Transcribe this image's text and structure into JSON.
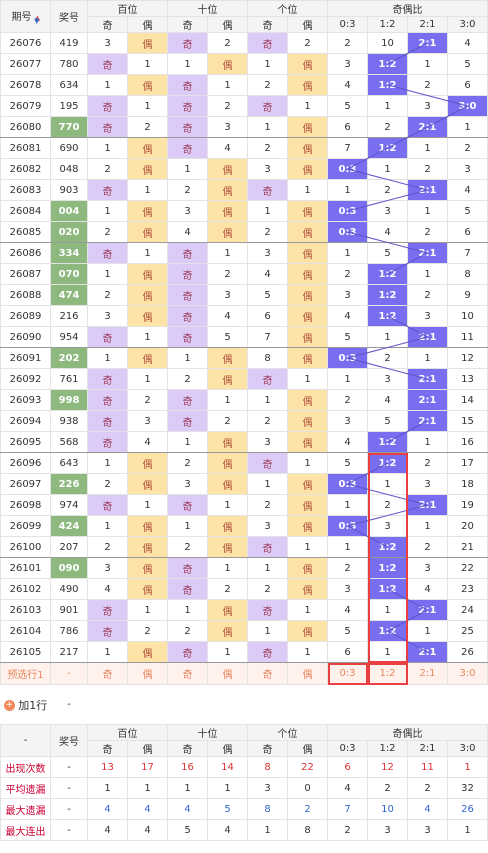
{
  "header": {
    "period": "期号",
    "number": "奖号",
    "groups": [
      "百位",
      "十位",
      "个位",
      "奇偶比"
    ],
    "sub": [
      "奇",
      "偶",
      "奇",
      "偶",
      "奇",
      "偶",
      "0:3",
      "1:2",
      "2:1",
      "3:0"
    ]
  },
  "rows": [
    [
      "26076",
      "419",
      3,
      "偶",
      "奇",
      2,
      "奇",
      2,
      2,
      10,
      "2:1",
      4
    ],
    [
      "26077",
      "780",
      "奇",
      1,
      1,
      "偶",
      1,
      "偶",
      3,
      "1:2",
      1,
      5
    ],
    [
      "26078",
      "634",
      1,
      "偶",
      "奇",
      1,
      2,
      "偶",
      4,
      "1:2",
      2,
      6
    ],
    [
      "26079",
      "195",
      "奇",
      1,
      "奇",
      2,
      "奇",
      1,
      5,
      1,
      3,
      "3:0"
    ],
    [
      "26080",
      "770",
      "奇",
      2,
      "奇",
      3,
      1,
      "偶",
      6,
      2,
      "2:1",
      1
    ],
    [
      "26081",
      "690",
      1,
      "偶",
      "奇",
      4,
      2,
      "偶",
      7,
      "1:2",
      1,
      2
    ],
    [
      "26082",
      "048",
      2,
      "偶",
      1,
      "偶",
      3,
      "偶",
      "0:3",
      1,
      2,
      3
    ],
    [
      "26083",
      "903",
      "奇",
      1,
      2,
      "偶",
      "奇",
      1,
      1,
      2,
      "2:1",
      4
    ],
    [
      "26084",
      "004",
      1,
      "偶",
      3,
      "偶",
      1,
      "偶",
      "0:3",
      3,
      1,
      5
    ],
    [
      "26085",
      "020",
      2,
      "偶",
      4,
      "偶",
      2,
      "偶",
      "0:3",
      4,
      2,
      6
    ],
    [
      "26086",
      "334",
      "奇",
      1,
      "奇",
      1,
      3,
      "偶",
      1,
      5,
      "2:1",
      7
    ],
    [
      "26087",
      "070",
      1,
      "偶",
      "奇",
      2,
      4,
      "偶",
      2,
      "1:2",
      1,
      8
    ],
    [
      "26088",
      "474",
      2,
      "偶",
      "奇",
      3,
      5,
      "偶",
      3,
      "1:2",
      2,
      9
    ],
    [
      "26089",
      "216",
      3,
      "偶",
      "奇",
      4,
      6,
      "偶",
      4,
      "1:2",
      3,
      10
    ],
    [
      "26090",
      "954",
      "奇",
      1,
      "奇",
      5,
      7,
      "偶",
      5,
      1,
      "2:1",
      11
    ],
    [
      "26091",
      "202",
      1,
      "偶",
      1,
      "偶",
      8,
      "偶",
      "0:3",
      2,
      1,
      12
    ],
    [
      "26092",
      "761",
      "奇",
      1,
      2,
      "偶",
      "奇",
      1,
      1,
      3,
      "2:1",
      13
    ],
    [
      "26093",
      "998",
      "奇",
      2,
      "奇",
      1,
      1,
      "偶",
      2,
      4,
      "2:1",
      14
    ],
    [
      "26094",
      "938",
      "奇",
      3,
      "奇",
      2,
      2,
      "偶",
      3,
      5,
      "2:1",
      15
    ],
    [
      "26095",
      "568",
      "奇",
      4,
      1,
      "偶",
      3,
      "偶",
      4,
      "1:2",
      1,
      16
    ],
    [
      "26096",
      "643",
      1,
      "偶",
      2,
      "偶",
      "奇",
      1,
      5,
      "1:2",
      2,
      17
    ],
    [
      "26097",
      "226",
      2,
      "偶",
      3,
      "偶",
      1,
      "偶",
      "0:3",
      1,
      3,
      18
    ],
    [
      "26098",
      "974",
      "奇",
      1,
      "奇",
      1,
      2,
      "偶",
      1,
      2,
      "2:1",
      19
    ],
    [
      "26099",
      "424",
      1,
      "偶",
      1,
      "偶",
      3,
      "偶",
      "0:3",
      3,
      1,
      20
    ],
    [
      "26100",
      "207",
      2,
      "偶",
      2,
      "偶",
      "奇",
      1,
      1,
      "1:2",
      2,
      21
    ],
    [
      "26101",
      "090",
      3,
      "偶",
      "奇",
      1,
      1,
      "偶",
      2,
      "1:2",
      3,
      22
    ],
    [
      "26102",
      "490",
      4,
      "偶",
      "奇",
      2,
      2,
      "偶",
      3,
      "1:2",
      4,
      23
    ],
    [
      "26103",
      "901",
      "奇",
      1,
      1,
      "偶",
      "奇",
      1,
      4,
      1,
      "2:1",
      24
    ],
    [
      "26104",
      "786",
      "奇",
      2,
      2,
      "偶",
      1,
      "偶",
      5,
      "1:2",
      1,
      25
    ],
    [
      "26105",
      "217",
      1,
      "偶",
      "奇",
      1,
      "奇",
      1,
      6,
      1,
      "2:1",
      26
    ]
  ],
  "forecast": {
    "label": "预选行1",
    "number": "-",
    "cells": [
      "奇",
      "偶",
      "奇",
      "偶",
      "奇",
      "偶",
      "0:3",
      "1:2",
      "2:1",
      "3:0"
    ]
  },
  "add_row": {
    "label": "加1行",
    "number": "-"
  },
  "footer": {
    "first": "-",
    "stats": [
      {
        "label": "出现次数",
        "number": "-",
        "values": [
          13,
          17,
          16,
          14,
          8,
          22,
          6,
          12,
          11,
          1
        ]
      },
      {
        "label": "平均遗漏",
        "number": "-",
        "values": [
          1,
          1,
          1,
          1,
          3,
          0,
          4,
          2,
          2,
          32
        ]
      },
      {
        "label": "最大遗漏",
        "number": "-",
        "values": [
          4,
          4,
          4,
          5,
          8,
          2,
          7,
          10,
          4,
          26
        ]
      },
      {
        "label": "最大连出",
        "number": "-",
        "values": [
          4,
          4,
          5,
          4,
          1,
          8,
          2,
          3,
          3,
          1
        ]
      }
    ]
  }
}
